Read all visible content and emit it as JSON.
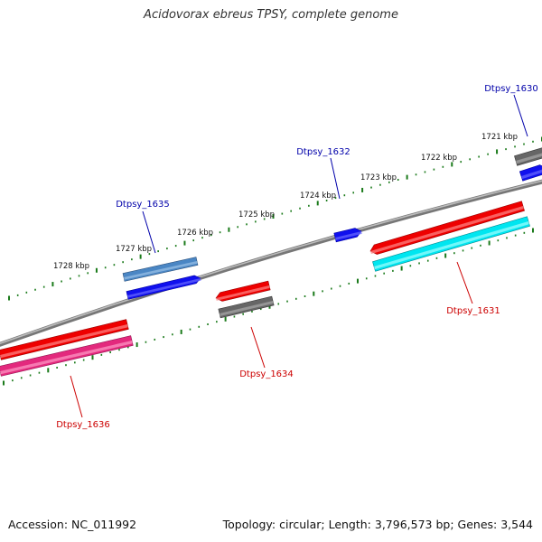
{
  "title": "Acidovorax ebreus TPSY, complete genome",
  "footer": {
    "accession": "Accession: NC_011992",
    "summary": "Topology: circular; Length: 3,796,573 bp; Genes: 3,544"
  },
  "colors": {
    "backbone": "#8a8a8a",
    "ticks": "#1a7a1a",
    "label_forward": "#0000aa",
    "label_reverse": "#cc0000"
  },
  "ticks": [
    {
      "label": "1728 kbp"
    },
    {
      "label": "1727 kbp"
    },
    {
      "label": "1726 kbp"
    },
    {
      "label": "1725 kbp"
    },
    {
      "label": "1724 kbp"
    },
    {
      "label": "1723 kbp"
    },
    {
      "label": "1722 kbp"
    },
    {
      "label": "1721 kbp"
    }
  ],
  "genes": [
    {
      "name": "Dtpsy_1630",
      "strand": "forward"
    },
    {
      "name": "Dtpsy_1631",
      "strand": "reverse"
    },
    {
      "name": "Dtpsy_1632",
      "strand": "forward"
    },
    {
      "name": "Dtpsy_1634",
      "strand": "reverse"
    },
    {
      "name": "Dtpsy_1635",
      "strand": "forward"
    },
    {
      "name": "Dtpsy_1636",
      "strand": "reverse"
    }
  ]
}
